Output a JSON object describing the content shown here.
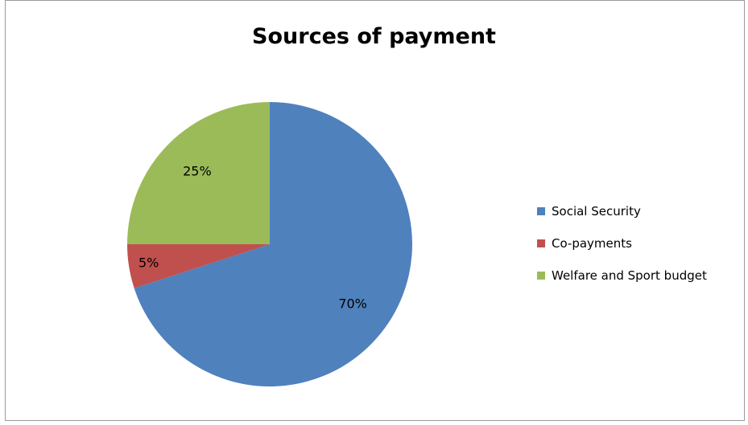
{
  "chart_data": {
    "type": "pie",
    "title": "Sources of payment",
    "categories": [
      "Social Security",
      "Co-payments",
      "Welfare and Sport budget"
    ],
    "values": [
      70,
      5,
      25
    ],
    "labels": [
      "70%",
      "5%",
      "25%"
    ],
    "colors": [
      "#4f81bd",
      "#c0504d",
      "#9bbb59"
    ],
    "start_angle_deg": 0,
    "direction": "clockwise",
    "legend_position": "right"
  }
}
